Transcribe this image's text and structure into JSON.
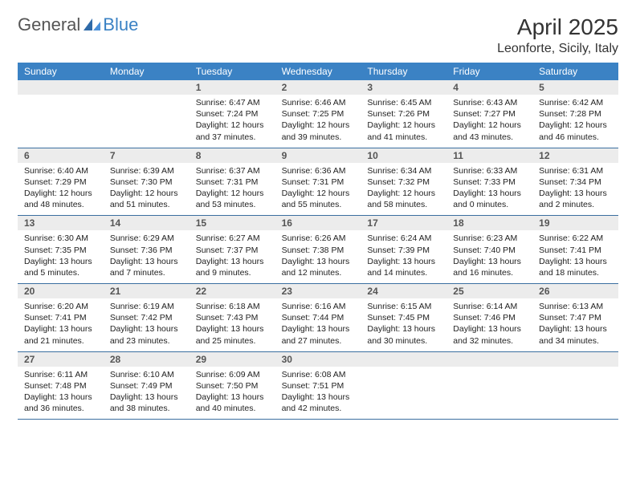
{
  "colors": {
    "header_bg": "#3b82c4",
    "header_text": "#ffffff",
    "daynum_bg": "#ececec",
    "daynum_text": "#555555",
    "body_text": "#222222",
    "week_border": "#3b6fa0",
    "page_bg": "#ffffff",
    "logo_gray": "#555555",
    "logo_blue": "#3b82c4"
  },
  "fonts": {
    "base_family": "Arial",
    "title_size_pt": 21,
    "location_size_pt": 12,
    "dayheader_size_pt": 9,
    "daynum_size_pt": 9,
    "body_size_pt": 8
  },
  "logo": {
    "part1": "General",
    "part2": "Blue"
  },
  "title": "April 2025",
  "location": "Leonforte, Sicily, Italy",
  "day_names": [
    "Sunday",
    "Monday",
    "Tuesday",
    "Wednesday",
    "Thursday",
    "Friday",
    "Saturday"
  ],
  "weeks": [
    [
      {
        "day": "",
        "sunrise": "",
        "sunset": "",
        "daylight1": "",
        "daylight2": ""
      },
      {
        "day": "",
        "sunrise": "",
        "sunset": "",
        "daylight1": "",
        "daylight2": ""
      },
      {
        "day": "1",
        "sunrise": "Sunrise: 6:47 AM",
        "sunset": "Sunset: 7:24 PM",
        "daylight1": "Daylight: 12 hours",
        "daylight2": "and 37 minutes."
      },
      {
        "day": "2",
        "sunrise": "Sunrise: 6:46 AM",
        "sunset": "Sunset: 7:25 PM",
        "daylight1": "Daylight: 12 hours",
        "daylight2": "and 39 minutes."
      },
      {
        "day": "3",
        "sunrise": "Sunrise: 6:45 AM",
        "sunset": "Sunset: 7:26 PM",
        "daylight1": "Daylight: 12 hours",
        "daylight2": "and 41 minutes."
      },
      {
        "day": "4",
        "sunrise": "Sunrise: 6:43 AM",
        "sunset": "Sunset: 7:27 PM",
        "daylight1": "Daylight: 12 hours",
        "daylight2": "and 43 minutes."
      },
      {
        "day": "5",
        "sunrise": "Sunrise: 6:42 AM",
        "sunset": "Sunset: 7:28 PM",
        "daylight1": "Daylight: 12 hours",
        "daylight2": "and 46 minutes."
      }
    ],
    [
      {
        "day": "6",
        "sunrise": "Sunrise: 6:40 AM",
        "sunset": "Sunset: 7:29 PM",
        "daylight1": "Daylight: 12 hours",
        "daylight2": "and 48 minutes."
      },
      {
        "day": "7",
        "sunrise": "Sunrise: 6:39 AM",
        "sunset": "Sunset: 7:30 PM",
        "daylight1": "Daylight: 12 hours",
        "daylight2": "and 51 minutes."
      },
      {
        "day": "8",
        "sunrise": "Sunrise: 6:37 AM",
        "sunset": "Sunset: 7:31 PM",
        "daylight1": "Daylight: 12 hours",
        "daylight2": "and 53 minutes."
      },
      {
        "day": "9",
        "sunrise": "Sunrise: 6:36 AM",
        "sunset": "Sunset: 7:31 PM",
        "daylight1": "Daylight: 12 hours",
        "daylight2": "and 55 minutes."
      },
      {
        "day": "10",
        "sunrise": "Sunrise: 6:34 AM",
        "sunset": "Sunset: 7:32 PM",
        "daylight1": "Daylight: 12 hours",
        "daylight2": "and 58 minutes."
      },
      {
        "day": "11",
        "sunrise": "Sunrise: 6:33 AM",
        "sunset": "Sunset: 7:33 PM",
        "daylight1": "Daylight: 13 hours",
        "daylight2": "and 0 minutes."
      },
      {
        "day": "12",
        "sunrise": "Sunrise: 6:31 AM",
        "sunset": "Sunset: 7:34 PM",
        "daylight1": "Daylight: 13 hours",
        "daylight2": "and 2 minutes."
      }
    ],
    [
      {
        "day": "13",
        "sunrise": "Sunrise: 6:30 AM",
        "sunset": "Sunset: 7:35 PM",
        "daylight1": "Daylight: 13 hours",
        "daylight2": "and 5 minutes."
      },
      {
        "day": "14",
        "sunrise": "Sunrise: 6:29 AM",
        "sunset": "Sunset: 7:36 PM",
        "daylight1": "Daylight: 13 hours",
        "daylight2": "and 7 minutes."
      },
      {
        "day": "15",
        "sunrise": "Sunrise: 6:27 AM",
        "sunset": "Sunset: 7:37 PM",
        "daylight1": "Daylight: 13 hours",
        "daylight2": "and 9 minutes."
      },
      {
        "day": "16",
        "sunrise": "Sunrise: 6:26 AM",
        "sunset": "Sunset: 7:38 PM",
        "daylight1": "Daylight: 13 hours",
        "daylight2": "and 12 minutes."
      },
      {
        "day": "17",
        "sunrise": "Sunrise: 6:24 AM",
        "sunset": "Sunset: 7:39 PM",
        "daylight1": "Daylight: 13 hours",
        "daylight2": "and 14 minutes."
      },
      {
        "day": "18",
        "sunrise": "Sunrise: 6:23 AM",
        "sunset": "Sunset: 7:40 PM",
        "daylight1": "Daylight: 13 hours",
        "daylight2": "and 16 minutes."
      },
      {
        "day": "19",
        "sunrise": "Sunrise: 6:22 AM",
        "sunset": "Sunset: 7:41 PM",
        "daylight1": "Daylight: 13 hours",
        "daylight2": "and 18 minutes."
      }
    ],
    [
      {
        "day": "20",
        "sunrise": "Sunrise: 6:20 AM",
        "sunset": "Sunset: 7:41 PM",
        "daylight1": "Daylight: 13 hours",
        "daylight2": "and 21 minutes."
      },
      {
        "day": "21",
        "sunrise": "Sunrise: 6:19 AM",
        "sunset": "Sunset: 7:42 PM",
        "daylight1": "Daylight: 13 hours",
        "daylight2": "and 23 minutes."
      },
      {
        "day": "22",
        "sunrise": "Sunrise: 6:18 AM",
        "sunset": "Sunset: 7:43 PM",
        "daylight1": "Daylight: 13 hours",
        "daylight2": "and 25 minutes."
      },
      {
        "day": "23",
        "sunrise": "Sunrise: 6:16 AM",
        "sunset": "Sunset: 7:44 PM",
        "daylight1": "Daylight: 13 hours",
        "daylight2": "and 27 minutes."
      },
      {
        "day": "24",
        "sunrise": "Sunrise: 6:15 AM",
        "sunset": "Sunset: 7:45 PM",
        "daylight1": "Daylight: 13 hours",
        "daylight2": "and 30 minutes."
      },
      {
        "day": "25",
        "sunrise": "Sunrise: 6:14 AM",
        "sunset": "Sunset: 7:46 PM",
        "daylight1": "Daylight: 13 hours",
        "daylight2": "and 32 minutes."
      },
      {
        "day": "26",
        "sunrise": "Sunrise: 6:13 AM",
        "sunset": "Sunset: 7:47 PM",
        "daylight1": "Daylight: 13 hours",
        "daylight2": "and 34 minutes."
      }
    ],
    [
      {
        "day": "27",
        "sunrise": "Sunrise: 6:11 AM",
        "sunset": "Sunset: 7:48 PM",
        "daylight1": "Daylight: 13 hours",
        "daylight2": "and 36 minutes."
      },
      {
        "day": "28",
        "sunrise": "Sunrise: 6:10 AM",
        "sunset": "Sunset: 7:49 PM",
        "daylight1": "Daylight: 13 hours",
        "daylight2": "and 38 minutes."
      },
      {
        "day": "29",
        "sunrise": "Sunrise: 6:09 AM",
        "sunset": "Sunset: 7:50 PM",
        "daylight1": "Daylight: 13 hours",
        "daylight2": "and 40 minutes."
      },
      {
        "day": "30",
        "sunrise": "Sunrise: 6:08 AM",
        "sunset": "Sunset: 7:51 PM",
        "daylight1": "Daylight: 13 hours",
        "daylight2": "and 42 minutes."
      },
      {
        "day": "",
        "sunrise": "",
        "sunset": "",
        "daylight1": "",
        "daylight2": ""
      },
      {
        "day": "",
        "sunrise": "",
        "sunset": "",
        "daylight1": "",
        "daylight2": ""
      },
      {
        "day": "",
        "sunrise": "",
        "sunset": "",
        "daylight1": "",
        "daylight2": ""
      }
    ]
  ]
}
